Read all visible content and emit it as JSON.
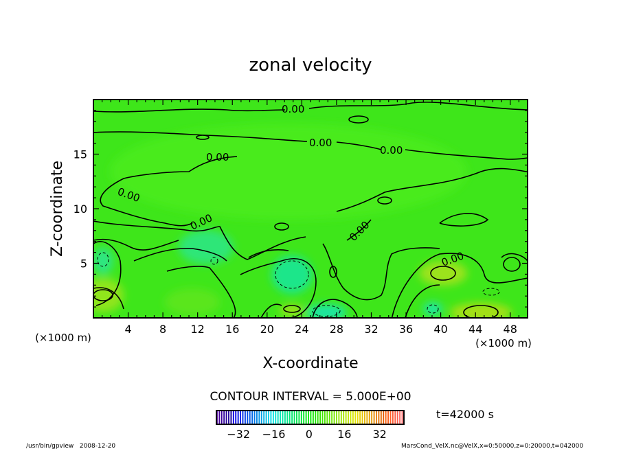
{
  "chart_data": {
    "type": "contour",
    "title": "zonal velocity",
    "xlabel": "X-coordinate",
    "ylabel": "Z-coordinate",
    "x_unit": "(×1000 m)",
    "z_unit": "(×1000 m)",
    "xlim": [
      0,
      50
    ],
    "ylim": [
      0,
      20
    ],
    "x_ticks": [
      4,
      8,
      12,
      16,
      20,
      24,
      28,
      32,
      36,
      40,
      44,
      48
    ],
    "y_ticks": [
      5,
      10,
      15
    ],
    "contour_interval_text": "CONTOUR INTERVAL = 5.000E+00",
    "contour_labels": [
      "0.00",
      "0.00",
      "0.00",
      "0.00",
      "0.00",
      "0.00",
      "0.00",
      "0.00"
    ],
    "colorbar": {
      "range": [
        -42,
        43
      ],
      "ticks": [
        -32,
        -16,
        0,
        16,
        32
      ],
      "tick_labels": [
        "−32",
        "−16",
        "0",
        "16",
        "32"
      ]
    },
    "time_label": "t=42000 s"
  },
  "footer": {
    "left": "/usr/bin/gpview   2008-12-20",
    "right": "MarsCond_VelX.nc@VelX,x=0:50000,z=0:20000,t=042000"
  }
}
